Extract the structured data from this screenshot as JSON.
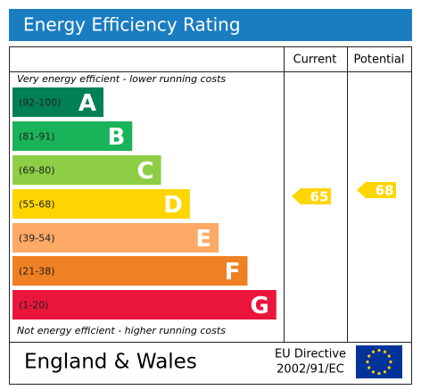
{
  "header": {
    "title": "Energy Efficiency Rating"
  },
  "columns": {
    "current": "Current",
    "potential": "Potential"
  },
  "notes": {
    "top": "Very energy efficient - lower running costs",
    "bottom": "Not energy efficient - higher running costs"
  },
  "bands": [
    {
      "range": "(92-100)",
      "letter": "A",
      "color": "#008054"
    },
    {
      "range": "(81-91)",
      "letter": "B",
      "color": "#19b459"
    },
    {
      "range": "(69-80)",
      "letter": "C",
      "color": "#8dce46"
    },
    {
      "range": "(55-68)",
      "letter": "D",
      "color": "#ffd500"
    },
    {
      "range": "(39-54)",
      "letter": "E",
      "color": "#fcaa65"
    },
    {
      "range": "(21-38)",
      "letter": "F",
      "color": "#ef8023"
    },
    {
      "range": "(1-20)",
      "letter": "G",
      "color": "#e9153b"
    }
  ],
  "ratings": {
    "current": "65",
    "potential": "68"
  },
  "footer": {
    "region": "England & Wales",
    "directive_line1": "EU Directive",
    "directive_line2": "2002/91/EC"
  }
}
